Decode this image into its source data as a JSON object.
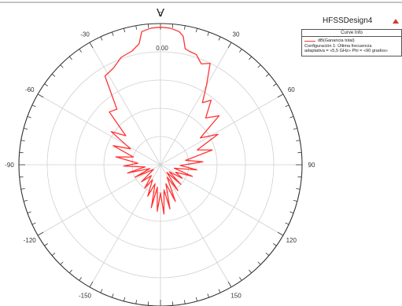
{
  "chart_data": {
    "type": "polar",
    "title": "V",
    "angle_ticks": [
      {
        "deg": 0,
        "label": "0"
      },
      {
        "deg": 30,
        "label": "30"
      },
      {
        "deg": 60,
        "label": "60"
      },
      {
        "deg": 90,
        "label": "90"
      },
      {
        "deg": 120,
        "label": "120"
      },
      {
        "deg": 150,
        "label": "150"
      },
      {
        "deg": 180,
        "label": "-180"
      },
      {
        "deg": -150,
        "label": "-150"
      },
      {
        "deg": -120,
        "label": "-120"
      },
      {
        "deg": -90,
        "label": "-90"
      },
      {
        "deg": -60,
        "label": "-60"
      },
      {
        "deg": -30,
        "label": "-30"
      }
    ],
    "radial_ticks": [
      {
        "value": 0,
        "label": "0.00"
      }
    ],
    "r_range": [
      -40,
      10
    ],
    "ring_values": [
      -40,
      -30,
      -20,
      -10,
      0,
      10
    ],
    "series": [
      {
        "name": "dB(Ganancia total)",
        "color": "#ff3333",
        "points": [
          [
            0,
            8.7
          ],
          [
            4,
            8.5
          ],
          [
            8,
            7.6
          ],
          [
            10,
            6.2
          ],
          [
            12,
            2.0
          ],
          [
            14,
            1.5
          ],
          [
            18,
            1.0
          ],
          [
            22,
            -1.5
          ],
          [
            26,
            0.0
          ],
          [
            30,
            -7.5
          ],
          [
            34,
            -13.5
          ],
          [
            38,
            -11.0
          ],
          [
            44,
            -17.0
          ],
          [
            50,
            -13.0
          ],
          [
            56,
            -23.0
          ],
          [
            62,
            -17.0
          ],
          [
            68,
            -26.0
          ],
          [
            74,
            -21.0
          ],
          [
            80,
            -31.0
          ],
          [
            86,
            -25.0
          ],
          [
            92,
            -33.0
          ],
          [
            98,
            -27.0
          ],
          [
            104,
            -35.0
          ],
          [
            110,
            -28.0
          ],
          [
            116,
            -34.0
          ],
          [
            122,
            -31.0
          ],
          [
            128,
            -36.0
          ],
          [
            134,
            -30.0
          ],
          [
            140,
            -36.5
          ],
          [
            146,
            -29.0
          ],
          [
            152,
            -35.0
          ],
          [
            158,
            -26.0
          ],
          [
            164,
            -33.0
          ],
          [
            168,
            -24.0
          ],
          [
            172,
            -31.0
          ],
          [
            176,
            -22.5
          ],
          [
            180,
            -30.0
          ],
          [
            -176,
            -23.5
          ],
          [
            -172,
            -32.0
          ],
          [
            -168,
            -24.5
          ],
          [
            -164,
            -33.0
          ],
          [
            -158,
            -28.0
          ],
          [
            -152,
            -34.0
          ],
          [
            -146,
            -30.0
          ],
          [
            -140,
            -35.0
          ],
          [
            -132,
            -31.0
          ],
          [
            -124,
            -37.0
          ],
          [
            -116,
            -30.0
          ],
          [
            -110,
            -36.0
          ],
          [
            -104,
            -28.0
          ],
          [
            -98,
            -34.5
          ],
          [
            -92,
            -27.0
          ],
          [
            -86,
            -32.0
          ],
          [
            -80,
            -24.0
          ],
          [
            -74,
            -30.0
          ],
          [
            -68,
            -22.0
          ],
          [
            -62,
            -28.0
          ],
          [
            -56,
            -19.0
          ],
          [
            -50,
            -24.0
          ],
          [
            -44,
            -14.0
          ],
          [
            -38,
            -15.0
          ],
          [
            -32,
            -3.0
          ],
          [
            -26,
            -2.0
          ],
          [
            -20,
            0.5
          ],
          [
            -14,
            1.5
          ],
          [
            -10,
            3.5
          ],
          [
            -8,
            7.6
          ],
          [
            -4,
            8.5
          ],
          [
            0,
            8.7
          ]
        ]
      }
    ]
  },
  "legend": {
    "header": "Curve Info",
    "entry_name": "dB(Ganancia total)",
    "line2": "Configuración 1: Última frecuencia",
    "line3": "adaptativa = «5,5 GHz» Phi = «90 grados»"
  },
  "design_name": "HFSSDesign4",
  "colors": {
    "curve": "#ff3333",
    "grid": "#d0d0d0",
    "axis": "#333333",
    "brand": "#d23a2a"
  }
}
